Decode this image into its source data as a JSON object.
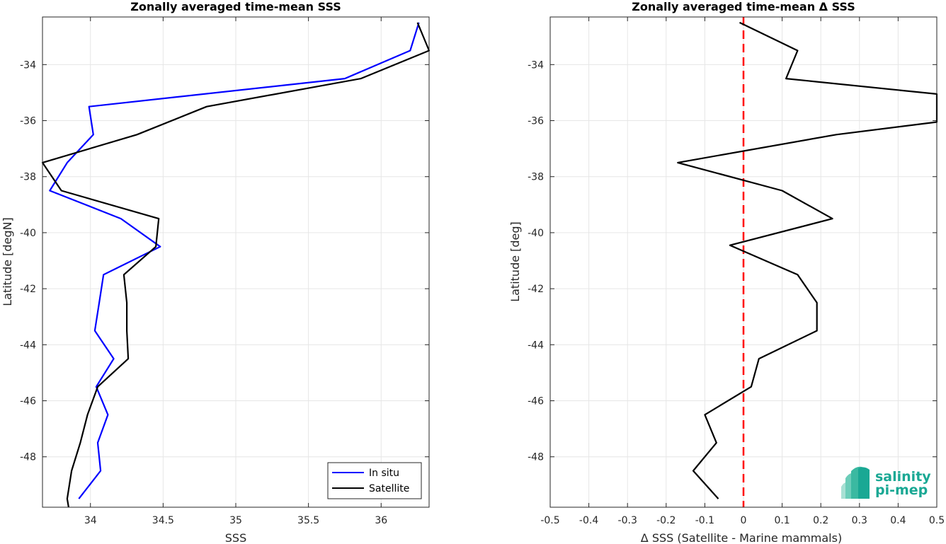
{
  "chart_data": [
    {
      "type": "line",
      "title": "Zonally averaged time-mean SSS",
      "xlabel": "SSS",
      "ylabel": "Latitude [degN]",
      "xlim": [
        33.67,
        36.33
      ],
      "ylim": [
        -49.8,
        -32.3
      ],
      "xticks": [
        34,
        34.5,
        35,
        35.5,
        36
      ],
      "xtick_labels": [
        "34",
        "34.5",
        "35",
        "35.5",
        "36"
      ],
      "yticks": [
        -34,
        -36,
        -38,
        -40,
        -42,
        -44,
        -46,
        -48
      ],
      "ytick_labels": [
        "-34",
        "-36",
        "-38",
        "-40",
        "-42",
        "-44",
        "-46",
        "-48"
      ],
      "grid": true,
      "legend": {
        "position": "bottom-right",
        "entries": [
          "In situ",
          "Satellite"
        ]
      },
      "series": [
        {
          "name": "In situ",
          "color": "#0000ff",
          "x": [
            36.26,
            36.2,
            35.75,
            33.99,
            34.02,
            33.84,
            33.72,
            34.21,
            34.48,
            34.09,
            34.06,
            34.03,
            34.16,
            34.04,
            34.12,
            34.05,
            34.07,
            33.92
          ],
          "y": [
            -32.5,
            -33.5,
            -34.5,
            -35.5,
            -36.5,
            -37.5,
            -38.5,
            -39.5,
            -40.5,
            -41.5,
            -42.5,
            -43.5,
            -44.5,
            -45.5,
            -46.5,
            -47.5,
            -48.5,
            -49.5
          ]
        },
        {
          "name": "Satellite",
          "color": "#000000",
          "x": [
            36.25,
            36.33,
            35.86,
            34.8,
            34.32,
            33.67,
            33.8,
            34.47,
            34.45,
            34.23,
            34.25,
            34.25,
            34.26,
            34.05,
            33.98,
            33.93,
            33.87,
            33.84,
            33.85
          ],
          "y": [
            -32.5,
            -33.5,
            -34.5,
            -35.5,
            -36.5,
            -37.5,
            -38.5,
            -39.5,
            -40.5,
            -41.5,
            -42.5,
            -43.5,
            -44.5,
            -45.5,
            -46.5,
            -47.5,
            -48.5,
            -49.5,
            -49.8
          ]
        }
      ]
    },
    {
      "type": "line",
      "title": "Zonally averaged time-mean Δ SSS",
      "xlabel": "Δ SSS (Satellite - Marine mammals)",
      "ylabel": "Latitude [deg]",
      "xlim": [
        -0.5,
        0.5
      ],
      "ylim": [
        -49.8,
        -32.3
      ],
      "xticks": [
        -0.5,
        -0.4,
        -0.3,
        -0.2,
        -0.1,
        0,
        0.1,
        0.2,
        0.3,
        0.4,
        0.5
      ],
      "xtick_labels": [
        "-0.5",
        "-0.4",
        "-0.3",
        "-0.2",
        "-0.1",
        "0",
        "0.1",
        "0.2",
        "0.3",
        "0.4",
        "0.5"
      ],
      "yticks": [
        -34,
        -36,
        -38,
        -40,
        -42,
        -44,
        -46,
        -48
      ],
      "ytick_labels": [
        "-34",
        "-36",
        "-38",
        "-40",
        "-42",
        "-44",
        "-46",
        "-48"
      ],
      "grid": true,
      "reference_line": {
        "x": 0,
        "color": "#ff0000",
        "style": "dashed"
      },
      "series": [
        {
          "color": "#000000",
          "x": [
            -0.01,
            0.14,
            0.11,
            0.5,
            0.5,
            0.24,
            -0.17,
            0.1,
            0.23,
            -0.035,
            0.14,
            0.19,
            0.19,
            0.04,
            0.02,
            -0.1,
            -0.07,
            -0.13,
            -0.065
          ],
          "y": [
            -32.5,
            -33.5,
            -34.5,
            -35.05,
            -36.05,
            -36.5,
            -37.5,
            -38.5,
            -39.5,
            -40.45,
            -41.5,
            -42.5,
            -43.5,
            -44.5,
            -45.5,
            -46.5,
            -47.5,
            -48.5,
            -49.5
          ]
        }
      ]
    }
  ],
  "logo": {
    "line1": "salinity",
    "line2": "pi-mep",
    "color": "#1aa894"
  }
}
